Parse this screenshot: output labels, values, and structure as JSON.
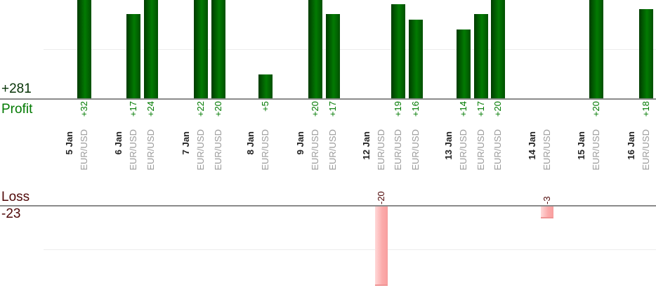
{
  "chart_data": {
    "type": "bar",
    "profit_section_label": "Profit",
    "profit_total_label": "+281",
    "loss_section_label": "Loss",
    "loss_total_label": "-23",
    "grid": true,
    "gridline_step": 10,
    "profit_axis_range": [
      0,
      20
    ],
    "loss_axis_range": [
      0,
      -20
    ],
    "days": [
      {
        "date": "5 Jan",
        "trades": [
          {
            "instrument": "EUR/USD",
            "value": 32,
            "label": "+32"
          }
        ]
      },
      {
        "date": "6 Jan",
        "trades": [
          {
            "instrument": "EUR/USD",
            "value": 17,
            "label": "+17"
          },
          {
            "instrument": "EUR/USD",
            "value": 24,
            "label": "+24"
          }
        ]
      },
      {
        "date": "7 Jan",
        "trades": [
          {
            "instrument": "EUR/USD",
            "value": 22,
            "label": "+22"
          },
          {
            "instrument": "EUR/USD",
            "value": 20,
            "label": "+20"
          }
        ]
      },
      {
        "date": "8 Jan",
        "trades": [
          {
            "instrument": "EUR/USD",
            "value": 5,
            "label": "+5"
          }
        ]
      },
      {
        "date": "9 Jan",
        "trades": [
          {
            "instrument": "EUR/USD",
            "value": 20,
            "label": "+20"
          },
          {
            "instrument": "EUR/USD",
            "value": 17,
            "label": "+17"
          }
        ]
      },
      {
        "date": "12 Jan",
        "trades": [
          {
            "instrument": "EUR/USD",
            "value": -20,
            "label": "-20"
          },
          {
            "instrument": "EUR/USD",
            "value": 19,
            "label": "+19"
          },
          {
            "instrument": "EUR/USD",
            "value": 16,
            "label": "+16"
          }
        ]
      },
      {
        "date": "13 Jan",
        "trades": [
          {
            "instrument": "EUR/USD",
            "value": 14,
            "label": "+14"
          },
          {
            "instrument": "EUR/USD",
            "value": 17,
            "label": "+17"
          },
          {
            "instrument": "EUR/USD",
            "value": 20,
            "label": "+20"
          }
        ]
      },
      {
        "date": "14 Jan",
        "trades": [
          {
            "instrument": "EUR/USD",
            "value": -3,
            "label": "-3"
          }
        ]
      },
      {
        "date": "15 Jan",
        "trades": [
          {
            "instrument": "EUR/USD",
            "value": 20,
            "label": "+20"
          }
        ]
      },
      {
        "date": "16 Jan",
        "trades": [
          {
            "instrument": "EUR/USD",
            "value": 18,
            "label": "+18"
          }
        ]
      }
    ],
    "colors": {
      "profit_bar": "#027b02",
      "profit_bar_dark_edge": "#003b00",
      "loss_bar": "#fbabab",
      "profit_text": "#017a01",
      "profit_total_text": "#063306",
      "loss_text": "#4f0808",
      "date_text": "#222222",
      "instrument_text": "#9b9b9b",
      "axis_line": "#8b8b8b",
      "gridline": "#ededed",
      "background": "#ffffff"
    }
  }
}
